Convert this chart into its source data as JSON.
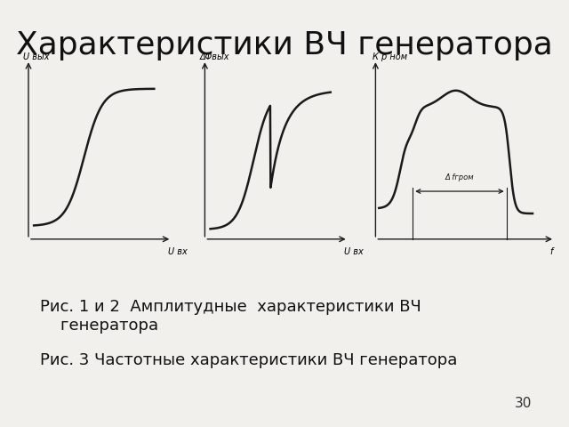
{
  "title": "Характеристики ВЧ генератора",
  "title_fontsize": 26,
  "caption1": "Рис. 1 и 2  Амплитудные  характеристики ВЧ\n    генератора",
  "caption2": "Рис. 3 Частотные характеристики ВЧ генератора",
  "caption_fontsize": 13,
  "page_number": "30",
  "bg_color": "#f2f0ec",
  "line_color": "#1a1a1a",
  "axis_label_fontsize": 7,
  "graph1_ylabel": "U вых",
  "graph1_xlabel": "U вх",
  "graph2_ylabel": "ΔΦвых",
  "graph2_xlabel": "U вх",
  "graph3_ylabel": "К р ном",
  "graph3_xlabel": "f",
  "graph3_arrow_label": "Δ fгром"
}
